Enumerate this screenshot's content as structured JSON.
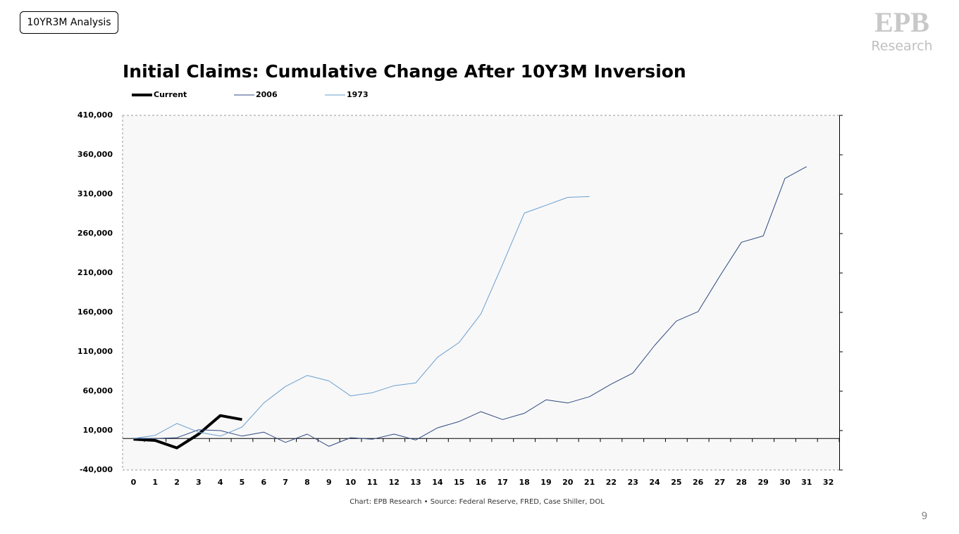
{
  "slide": {
    "tag": "10YR3M Analysis",
    "logo": {
      "mark": "EPB",
      "word": "Research"
    },
    "source": "Chart: EPB Research •  Source: Federal Reserve, FRED, Case Shiller, DOL",
    "page": "9"
  },
  "chart_data": {
    "type": "line",
    "title": "Initial Claims: Cumulative Change After 10Y3M Inversion",
    "categories": [
      "0",
      "1",
      "2",
      "3",
      "4",
      "5",
      "6",
      "7",
      "8",
      "9",
      "10",
      "11",
      "12",
      "13",
      "14",
      "15",
      "16",
      "17",
      "18",
      "19",
      "20",
      "21",
      "22",
      "23",
      "24",
      "25",
      "26",
      "27",
      "28",
      "29",
      "30",
      "31",
      "32"
    ],
    "series": [
      {
        "name": "Current",
        "color": "#000000",
        "width": 4,
        "values": [
          -1000,
          -2500,
          -12000,
          5500,
          29000,
          24000,
          null,
          null,
          null,
          null,
          null,
          null,
          null,
          null,
          null,
          null,
          null,
          null,
          null,
          null,
          null,
          null,
          null,
          null,
          null,
          null,
          null,
          null,
          null,
          null,
          null,
          null,
          null
        ]
      },
      {
        "name": "2006",
        "color": "#2f4a80",
        "width": 1,
        "values": [
          0,
          0,
          1000,
          11000,
          10000,
          3000,
          8000,
          -5000,
          5500,
          -10000,
          1000,
          -1000,
          5500,
          -2000,
          13500,
          21500,
          34000,
          24000,
          32000,
          49000,
          45000,
          53000,
          69000,
          83000,
          118000,
          149000,
          161000,
          206000,
          249000,
          257000,
          330000,
          345000,
          null
        ]
      },
      {
        "name": "1973",
        "color": "#6a9fd0",
        "width": 1,
        "values": [
          0,
          4000,
          19000,
          8000,
          3000,
          14500,
          45000,
          66000,
          80000,
          73000,
          54000,
          58000,
          67000,
          70500,
          103000,
          122000,
          158000,
          221000,
          286000,
          296000,
          306000,
          307000,
          null,
          null,
          null,
          null,
          null,
          null,
          null,
          null,
          null,
          null,
          null
        ]
      }
    ],
    "ylim": [
      -40000,
      410000
    ],
    "yticks": [
      {
        "value": -40000,
        "label": "-40,000"
      },
      {
        "value": 10000,
        "label": "10,000"
      },
      {
        "value": 60000,
        "label": "60,000"
      },
      {
        "value": 110000,
        "label": "110,000"
      },
      {
        "value": 160000,
        "label": "160,000"
      },
      {
        "value": 210000,
        "label": "210,000"
      },
      {
        "value": 260000,
        "label": "260,000"
      },
      {
        "value": 310000,
        "label": "310,000"
      },
      {
        "value": 360000,
        "label": "360,000"
      },
      {
        "value": 410000,
        "label": "410,000"
      }
    ],
    "legend": "top-left",
    "grid": false
  }
}
